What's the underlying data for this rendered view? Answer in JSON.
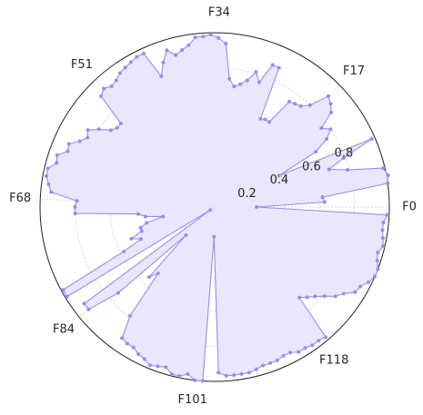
{
  "chart_data": {
    "type": "radar",
    "n_axes": 138,
    "axis_labels": [
      {
        "index": 0,
        "label": "F0"
      },
      {
        "index": 17,
        "label": "F17"
      },
      {
        "index": 34,
        "label": "F34"
      },
      {
        "index": 51,
        "label": "F51"
      },
      {
        "index": 68,
        "label": "F68"
      },
      {
        "index": 84,
        "label": "F84"
      },
      {
        "index": 101,
        "label": "F101"
      },
      {
        "index": 118,
        "label": "F118"
      }
    ],
    "rlim": [
      0,
      1
    ],
    "ring_ticks": [
      "0.2",
      "0.4",
      "0.6",
      "0.8"
    ],
    "grid": true,
    "series": [
      {
        "color": "#9b8ce8",
        "fill": "#e6e2fa",
        "values": [
          0.24,
          0.63,
          0.62,
          1.0,
          1.01,
          0.99,
          0.79,
          0.69,
          0.79,
          0.98,
          0.41,
          0.66,
          0.75,
          0.8,
          0.76,
          0.86,
          0.89,
          0.91,
          0.8,
          0.76,
          0.75,
          0.74,
          0.58,
          0.58,
          0.57,
          0.88,
          0.88,
          0.76,
          0.81,
          0.75,
          0.72,
          0.7,
          0.74,
          0.94,
          0.97,
          0.99,
          0.98,
          0.98,
          0.94,
          0.92,
          0.9,
          0.94,
          0.88,
          0.81,
          0.97,
          0.97,
          0.96,
          0.95,
          0.94,
          0.92,
          0.91,
          0.93,
          0.91,
          0.72,
          0.72,
          0.74,
          0.8,
          0.85,
          0.83,
          0.86,
          0.91,
          0.9,
          0.95,
          0.94,
          0.98,
          0.98,
          0.96,
          0.94,
          0.79,
          0.8,
          0.8,
          0.44,
          0.4,
          0.3,
          0.4,
          0.44,
          0.44,
          0.51,
          0.46,
          0.58,
          0.99,
          0.99,
          0.03,
          0.93,
          0.93,
          0.74,
          0.23,
          0.55,
          0.5,
          0.79,
          0.92,
          0.93,
          0.93,
          0.95,
          0.96,
          0.98,
          0.97,
          0.96,
          0.99,
          0.99,
          0.97,
          1.0,
          1.0,
          0.17,
          0.95,
          0.97,
          0.97,
          0.97,
          0.97,
          0.96,
          0.95,
          0.95,
          0.95,
          0.94,
          0.94,
          0.96,
          0.96,
          0.97,
          0.97,
          0.98,
          0.71,
          0.74,
          0.77,
          0.81,
          0.86,
          0.89,
          0.94,
          0.95,
          0.98,
          1.0,
          1.0,
          0.98,
          0.97,
          0.99,
          0.98,
          0.97,
          0.97,
          0.99
        ]
      }
    ]
  }
}
